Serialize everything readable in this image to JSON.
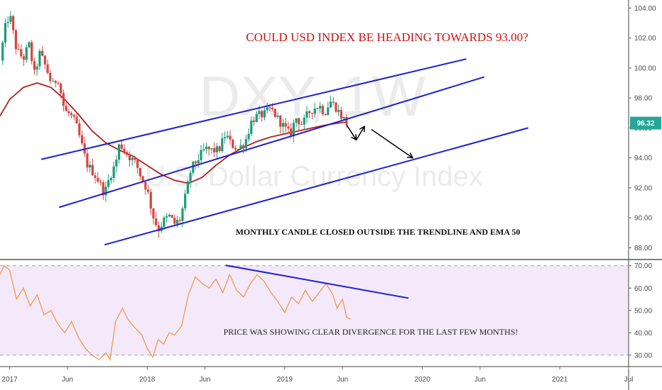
{
  "chart_data": [
    {
      "type": "candlestick",
      "title": "COULD USD INDEX BE HEADING TOWARDS 93.00?",
      "watermark": {
        "symbol": "DXY, 1W",
        "name": "U.S. Dollar Currency Index"
      },
      "annotation": "MONTHLY CANDLE CLOSED OUTSIDE THE TRENDLINE AND EMA 50",
      "y_ticks": [
        "104.00",
        "102.00",
        "100.00",
        "98.00",
        "96.00",
        "94.00",
        "92.00",
        "90.00",
        "88.00"
      ],
      "ylim": [
        87.5,
        104.3
      ],
      "last_price": "96.32",
      "x_ticks": [
        {
          "label": "2017",
          "t": 2017.0
        },
        {
          "label": "Jun",
          "t": 2017.42
        },
        {
          "label": "2018",
          "t": 2018.0
        },
        {
          "label": "Jun",
          "t": 2018.42
        },
        {
          "label": "2019",
          "t": 2019.0
        },
        {
          "label": "Jun",
          "t": 2019.42
        },
        {
          "label": "2020",
          "t": 2020.0
        },
        {
          "label": "Jun",
          "t": 2020.42
        },
        {
          "label": "2021",
          "t": 2021.0
        },
        {
          "label": "Jul",
          "t": 2021.5
        }
      ],
      "xlim": [
        2016.93,
        2021.5
      ],
      "price_path": [
        [
          2016.93,
          100.5
        ],
        [
          2016.97,
          102.8
        ],
        [
          2017.0,
          103.6
        ],
        [
          2017.05,
          101.2
        ],
        [
          2017.1,
          100.6
        ],
        [
          2017.14,
          101.6
        ],
        [
          2017.18,
          99.6
        ],
        [
          2017.22,
          101.0
        ],
        [
          2017.27,
          99.9
        ],
        [
          2017.31,
          98.8
        ],
        [
          2017.35,
          99.4
        ],
        [
          2017.4,
          97.1
        ],
        [
          2017.44,
          96.9
        ],
        [
          2017.48,
          96.3
        ],
        [
          2017.52,
          95.0
        ],
        [
          2017.56,
          93.6
        ],
        [
          2017.61,
          93.0
        ],
        [
          2017.65,
          92.4
        ],
        [
          2017.69,
          91.6
        ],
        [
          2017.73,
          92.8
        ],
        [
          2017.77,
          93.6
        ],
        [
          2017.8,
          95.0
        ],
        [
          2017.84,
          94.4
        ],
        [
          2017.88,
          94.0
        ],
        [
          2017.92,
          93.6
        ],
        [
          2017.96,
          92.6
        ],
        [
          2018.0,
          91.9
        ],
        [
          2018.04,
          90.2
        ],
        [
          2018.08,
          89.2
        ],
        [
          2018.12,
          89.8
        ],
        [
          2018.16,
          90.1
        ],
        [
          2018.2,
          89.6
        ],
        [
          2018.24,
          89.9
        ],
        [
          2018.28,
          91.5
        ],
        [
          2018.32,
          93.3
        ],
        [
          2018.36,
          93.8
        ],
        [
          2018.42,
          94.6
        ],
        [
          2018.47,
          94.5
        ],
        [
          2018.52,
          94.5
        ],
        [
          2018.57,
          95.6
        ],
        [
          2018.61,
          94.9
        ],
        [
          2018.66,
          94.6
        ],
        [
          2018.71,
          95.0
        ],
        [
          2018.76,
          96.5
        ],
        [
          2018.8,
          96.8
        ],
        [
          2018.85,
          96.9
        ],
        [
          2018.9,
          97.3
        ],
        [
          2018.95,
          96.6
        ],
        [
          2019.0,
          96.0
        ],
        [
          2019.04,
          95.5
        ],
        [
          2019.08,
          96.7
        ],
        [
          2019.13,
          96.2
        ],
        [
          2019.17,
          97.0
        ],
        [
          2019.21,
          97.3
        ],
        [
          2019.25,
          97.5
        ],
        [
          2019.29,
          97.0
        ],
        [
          2019.33,
          97.8
        ],
        [
          2019.37,
          97.4
        ],
        [
          2019.41,
          96.8
        ],
        [
          2019.45,
          96.32
        ]
      ],
      "ema50_path": [
        [
          2016.93,
          96.8
        ],
        [
          2017.0,
          97.9
        ],
        [
          2017.1,
          98.7
        ],
        [
          2017.2,
          99.0
        ],
        [
          2017.3,
          98.7
        ],
        [
          2017.4,
          97.9
        ],
        [
          2017.5,
          96.9
        ],
        [
          2017.6,
          95.8
        ],
        [
          2017.7,
          95.0
        ],
        [
          2017.8,
          94.5
        ],
        [
          2017.9,
          94.1
        ],
        [
          2018.0,
          93.5
        ],
        [
          2018.1,
          92.9
        ],
        [
          2018.2,
          92.5
        ],
        [
          2018.3,
          92.3
        ],
        [
          2018.4,
          92.7
        ],
        [
          2018.5,
          93.5
        ],
        [
          2018.6,
          94.2
        ],
        [
          2018.7,
          94.7
        ],
        [
          2018.8,
          95.1
        ],
        [
          2018.9,
          95.4
        ],
        [
          2019.0,
          95.6
        ],
        [
          2019.1,
          95.8
        ],
        [
          2019.2,
          96.0
        ],
        [
          2019.3,
          96.2
        ],
        [
          2019.45,
          96.4
        ]
      ],
      "channel_lines": [
        {
          "from": [
            2017.23,
            93.9
          ],
          "to": [
            2020.32,
            100.6
          ]
        },
        {
          "from": [
            2017.36,
            90.7
          ],
          "to": [
            2020.45,
            99.4
          ]
        },
        {
          "from": [
            2017.69,
            88.2
          ],
          "to": [
            2020.77,
            96.0
          ]
        }
      ],
      "projection_arrows": [
        {
          "from": [
            2019.45,
            96.2
          ],
          "to": [
            2019.52,
            95.2
          ]
        },
        {
          "from": [
            2019.52,
            95.2
          ],
          "to": [
            2019.58,
            96.1
          ]
        },
        {
          "from": [
            2019.63,
            95.9
          ],
          "to": [
            2019.93,
            94.0
          ]
        }
      ],
      "colors": {
        "up": "#1b9c7a",
        "down": "#d4463f",
        "channel": "#1f1fd0",
        "ema": "#b32020",
        "title": "#cc1111",
        "price_label_bg": "#26a69a"
      }
    },
    {
      "type": "line",
      "indicator": "RSI",
      "annotation": "PRICE WAS SHOWING CLEAR DIVERGENCE FOR THE LAST FEW MONTHS!",
      "y_ticks": [
        "70.00",
        "60.00",
        "50.00",
        "40.00",
        "30.00"
      ],
      "ylim": [
        25.5,
        71.5
      ],
      "band": [
        30,
        70
      ],
      "rsi_path": [
        [
          2016.93,
          66
        ],
        [
          2016.96,
          70
        ],
        [
          2017.0,
          68
        ],
        [
          2017.05,
          55
        ],
        [
          2017.1,
          60
        ],
        [
          2017.15,
          52
        ],
        [
          2017.2,
          57
        ],
        [
          2017.25,
          48
        ],
        [
          2017.3,
          50
        ],
        [
          2017.35,
          44
        ],
        [
          2017.4,
          40
        ],
        [
          2017.45,
          45
        ],
        [
          2017.5,
          38
        ],
        [
          2017.55,
          33
        ],
        [
          2017.6,
          30
        ],
        [
          2017.65,
          28
        ],
        [
          2017.7,
          31
        ],
        [
          2017.73,
          28
        ],
        [
          2017.77,
          45
        ],
        [
          2017.82,
          51
        ],
        [
          2017.86,
          46
        ],
        [
          2017.9,
          43
        ],
        [
          2017.96,
          39
        ],
        [
          2018.0,
          33
        ],
        [
          2018.04,
          29
        ],
        [
          2018.08,
          37
        ],
        [
          2018.12,
          35
        ],
        [
          2018.16,
          40
        ],
        [
          2018.2,
          39
        ],
        [
          2018.25,
          43
        ],
        [
          2018.3,
          57
        ],
        [
          2018.35,
          65
        ],
        [
          2018.4,
          62
        ],
        [
          2018.45,
          60
        ],
        [
          2018.5,
          64
        ],
        [
          2018.55,
          58
        ],
        [
          2018.6,
          66
        ],
        [
          2018.65,
          59
        ],
        [
          2018.7,
          56
        ],
        [
          2018.75,
          62
        ],
        [
          2018.8,
          66
        ],
        [
          2018.85,
          63
        ],
        [
          2018.9,
          58
        ],
        [
          2018.95,
          54
        ],
        [
          2019.0,
          49
        ],
        [
          2019.05,
          56
        ],
        [
          2019.1,
          53
        ],
        [
          2019.15,
          59
        ],
        [
          2019.2,
          54
        ],
        [
          2019.25,
          58
        ],
        [
          2019.3,
          62
        ],
        [
          2019.35,
          57
        ],
        [
          2019.38,
          51
        ],
        [
          2019.42,
          55
        ],
        [
          2019.45,
          47
        ],
        [
          2019.48,
          46
        ]
      ],
      "divergence_line": {
        "from": [
          2018.57,
          70.2
        ],
        "to": [
          2019.9,
          55.5
        ]
      },
      "colors": {
        "rsi": "#f2994a",
        "band_fill": "#f3e9fb",
        "band_edge": "#a6a6a6",
        "divergence": "#1f1fd0"
      }
    }
  ]
}
